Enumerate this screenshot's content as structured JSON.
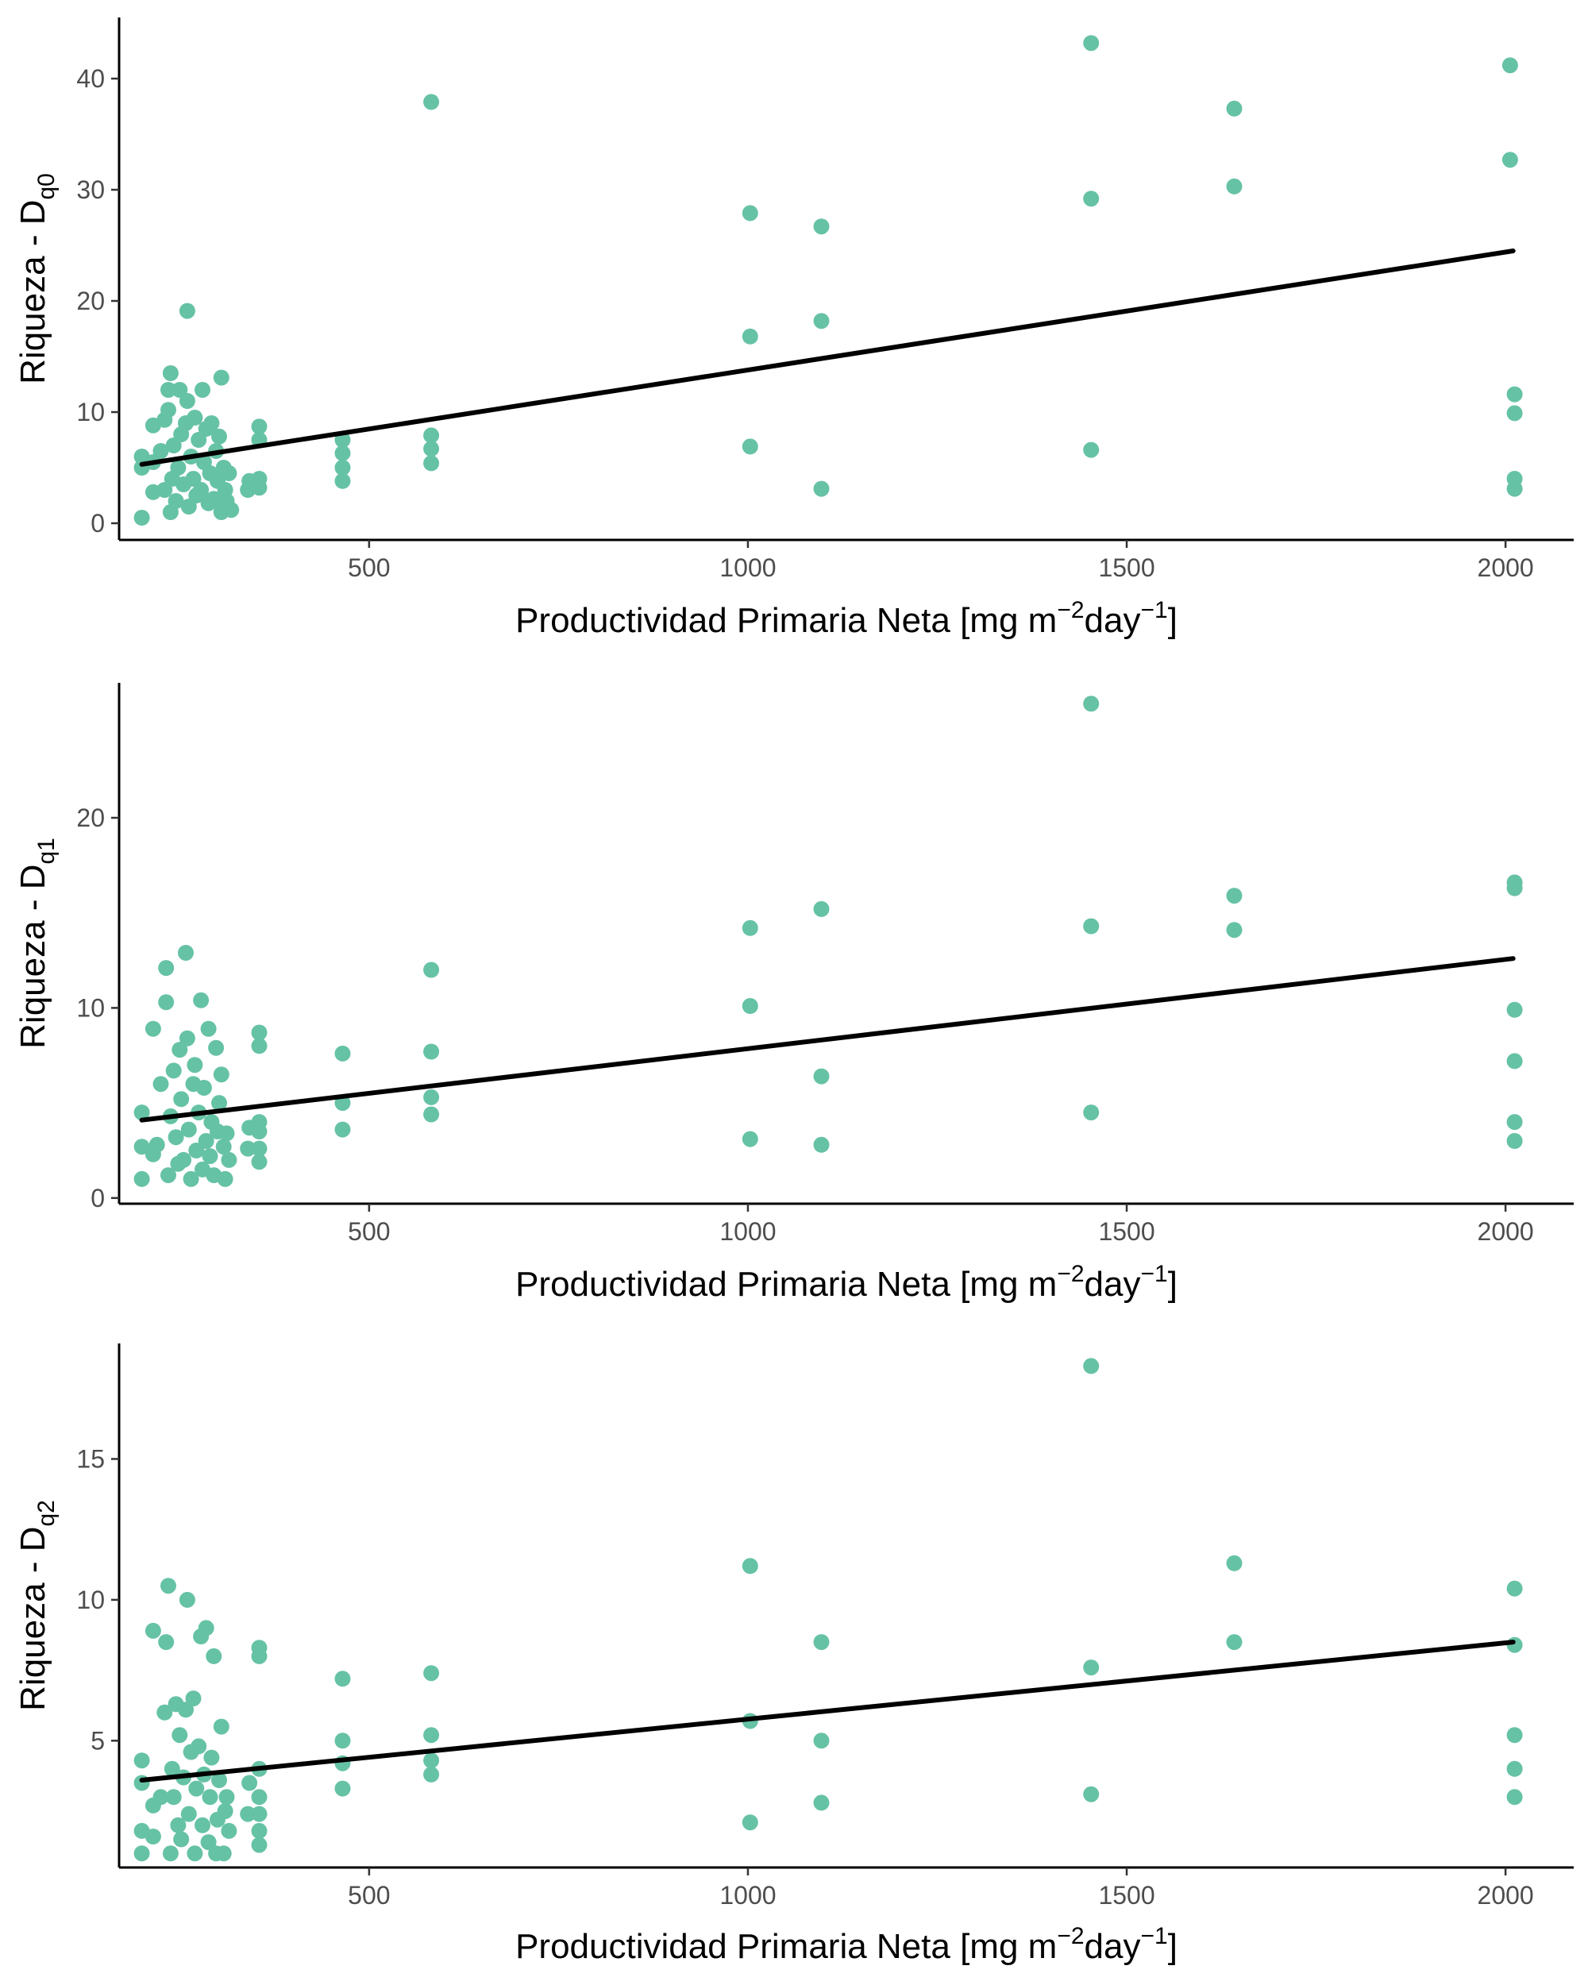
{
  "point_color": "#66c2a5",
  "line_color": "#000000",
  "chart_data": [
    {
      "type": "scatter",
      "title": "",
      "xlabel": {
        "base": "Productividad Primaria Neta [mg m",
        "sup1": "−2",
        "mid": "day",
        "sup2": "−1",
        "end": "]"
      },
      "ylabel": {
        "base": "Riqueza - D",
        "sub": "q0"
      },
      "xlim": [
        170,
        2090
      ],
      "ylim": [
        -1.5,
        45.5
      ],
      "xticks": [
        500,
        1000,
        1500,
        2000
      ],
      "yticks": [
        0,
        10,
        20,
        30,
        40
      ],
      "grid": false,
      "fit_line": {
        "x": [
          200,
          2010
        ],
        "y": [
          5.3,
          24.5
        ]
      },
      "points": [
        {
          "x": 200,
          "y": 0.5
        },
        {
          "x": 200,
          "y": 5.0
        },
        {
          "x": 200,
          "y": 6.0
        },
        {
          "x": 215,
          "y": 2.8
        },
        {
          "x": 215,
          "y": 5.5
        },
        {
          "x": 215,
          "y": 8.8
        },
        {
          "x": 225,
          "y": 6.5
        },
        {
          "x": 230,
          "y": 3.0
        },
        {
          "x": 230,
          "y": 9.3
        },
        {
          "x": 235,
          "y": 10.2
        },
        {
          "x": 235,
          "y": 12.0
        },
        {
          "x": 238,
          "y": 13.5
        },
        {
          "x": 238,
          "y": 1.0
        },
        {
          "x": 240,
          "y": 4.0
        },
        {
          "x": 242,
          "y": 7.0
        },
        {
          "x": 245,
          "y": 2.0
        },
        {
          "x": 248,
          "y": 5.0
        },
        {
          "x": 250,
          "y": 12.0
        },
        {
          "x": 252,
          "y": 8.0
        },
        {
          "x": 255,
          "y": 3.5
        },
        {
          "x": 258,
          "y": 9.0
        },
        {
          "x": 260,
          "y": 11.0
        },
        {
          "x": 260,
          "y": 19.1
        },
        {
          "x": 262,
          "y": 1.5
        },
        {
          "x": 265,
          "y": 6.0
        },
        {
          "x": 268,
          "y": 4.0
        },
        {
          "x": 270,
          "y": 9.5
        },
        {
          "x": 272,
          "y": 2.5
        },
        {
          "x": 275,
          "y": 7.5
        },
        {
          "x": 278,
          "y": 3.0
        },
        {
          "x": 280,
          "y": 12.0
        },
        {
          "x": 282,
          "y": 5.5
        },
        {
          "x": 285,
          "y": 8.5
        },
        {
          "x": 288,
          "y": 1.8
        },
        {
          "x": 290,
          "y": 4.5
        },
        {
          "x": 292,
          "y": 9.0
        },
        {
          "x": 295,
          "y": 2.2
        },
        {
          "x": 298,
          "y": 6.5
        },
        {
          "x": 300,
          "y": 3.8
        },
        {
          "x": 302,
          "y": 7.8
        },
        {
          "x": 305,
          "y": 1.0
        },
        {
          "x": 305,
          "y": 13.1
        },
        {
          "x": 308,
          "y": 5.0
        },
        {
          "x": 310,
          "y": 3.0
        },
        {
          "x": 312,
          "y": 2.0
        },
        {
          "x": 315,
          "y": 4.5
        },
        {
          "x": 318,
          "y": 1.2
        },
        {
          "x": 340,
          "y": 3.0
        },
        {
          "x": 342,
          "y": 3.8
        },
        {
          "x": 355,
          "y": 3.2
        },
        {
          "x": 355,
          "y": 4.0
        },
        {
          "x": 355,
          "y": 7.5
        },
        {
          "x": 355,
          "y": 8.7
        },
        {
          "x": 465,
          "y": 3.8
        },
        {
          "x": 465,
          "y": 5.0
        },
        {
          "x": 465,
          "y": 6.3
        },
        {
          "x": 465,
          "y": 7.5
        },
        {
          "x": 582,
          "y": 5.4
        },
        {
          "x": 582,
          "y": 6.7
        },
        {
          "x": 582,
          "y": 7.9
        },
        {
          "x": 582,
          "y": 37.9
        },
        {
          "x": 1003,
          "y": 6.9
        },
        {
          "x": 1003,
          "y": 16.8
        },
        {
          "x": 1003,
          "y": 27.9
        },
        {
          "x": 1097,
          "y": 3.1
        },
        {
          "x": 1097,
          "y": 18.2
        },
        {
          "x": 1097,
          "y": 26.7
        },
        {
          "x": 1453,
          "y": 6.6
        },
        {
          "x": 1453,
          "y": 29.2
        },
        {
          "x": 1453,
          "y": 43.2
        },
        {
          "x": 1642,
          "y": 30.3
        },
        {
          "x": 1642,
          "y": 37.3
        },
        {
          "x": 2006,
          "y": 32.7
        },
        {
          "x": 2006,
          "y": 41.2
        },
        {
          "x": 2012,
          "y": 3.1
        },
        {
          "x": 2012,
          "y": 4.0
        },
        {
          "x": 2012,
          "y": 9.9
        },
        {
          "x": 2012,
          "y": 11.6
        }
      ]
    },
    {
      "type": "scatter",
      "title": "",
      "xlabel": {
        "base": "Productividad Primaria Neta [mg m",
        "sup1": "−2",
        "mid": "day",
        "sup2": "−1",
        "end": "]"
      },
      "ylabel": {
        "base": "Riqueza - D",
        "sub": "q1"
      },
      "xlim": [
        170,
        2090
      ],
      "ylim": [
        -0.3,
        27.1
      ],
      "xticks": [
        500,
        1000,
        1500,
        2000
      ],
      "yticks": [
        0,
        10,
        20
      ],
      "grid": false,
      "fit_line": {
        "x": [
          200,
          2010
        ],
        "y": [
          4.1,
          12.6
        ]
      },
      "points": [
        {
          "x": 200,
          "y": 1.0
        },
        {
          "x": 200,
          "y": 2.7
        },
        {
          "x": 200,
          "y": 4.5
        },
        {
          "x": 215,
          "y": 2.3
        },
        {
          "x": 215,
          "y": 8.9
        },
        {
          "x": 220,
          "y": 2.8
        },
        {
          "x": 225,
          "y": 6.0
        },
        {
          "x": 232,
          "y": 10.3
        },
        {
          "x": 232,
          "y": 12.1
        },
        {
          "x": 235,
          "y": 1.2
        },
        {
          "x": 238,
          "y": 4.3
        },
        {
          "x": 242,
          "y": 6.7
        },
        {
          "x": 245,
          "y": 3.2
        },
        {
          "x": 248,
          "y": 1.8
        },
        {
          "x": 250,
          "y": 7.8
        },
        {
          "x": 252,
          "y": 5.2
        },
        {
          "x": 255,
          "y": 2.0
        },
        {
          "x": 258,
          "y": 12.9
        },
        {
          "x": 260,
          "y": 8.4
        },
        {
          "x": 262,
          "y": 3.6
        },
        {
          "x": 265,
          "y": 1.0
        },
        {
          "x": 268,
          "y": 6.0
        },
        {
          "x": 270,
          "y": 7.0
        },
        {
          "x": 272,
          "y": 2.5
        },
        {
          "x": 275,
          "y": 4.5
        },
        {
          "x": 278,
          "y": 10.4
        },
        {
          "x": 280,
          "y": 1.5
        },
        {
          "x": 282,
          "y": 5.8
        },
        {
          "x": 285,
          "y": 3.0
        },
        {
          "x": 288,
          "y": 8.9
        },
        {
          "x": 290,
          "y": 2.2
        },
        {
          "x": 292,
          "y": 4.0
        },
        {
          "x": 295,
          "y": 1.2
        },
        {
          "x": 298,
          "y": 7.9
        },
        {
          "x": 300,
          "y": 3.5
        },
        {
          "x": 302,
          "y": 5.0
        },
        {
          "x": 305,
          "y": 6.5
        },
        {
          "x": 308,
          "y": 2.7
        },
        {
          "x": 310,
          "y": 1.0
        },
        {
          "x": 312,
          "y": 3.4
        },
        {
          "x": 315,
          "y": 2.0
        },
        {
          "x": 340,
          "y": 2.6
        },
        {
          "x": 342,
          "y": 3.7
        },
        {
          "x": 355,
          "y": 1.9
        },
        {
          "x": 355,
          "y": 2.6
        },
        {
          "x": 355,
          "y": 3.5
        },
        {
          "x": 355,
          "y": 4.0
        },
        {
          "x": 355,
          "y": 8.0
        },
        {
          "x": 355,
          "y": 8.7
        },
        {
          "x": 465,
          "y": 3.6
        },
        {
          "x": 465,
          "y": 5.0
        },
        {
          "x": 465,
          "y": 7.6
        },
        {
          "x": 582,
          "y": 4.4
        },
        {
          "x": 582,
          "y": 5.3
        },
        {
          "x": 582,
          "y": 7.7
        },
        {
          "x": 582,
          "y": 12.0
        },
        {
          "x": 1003,
          "y": 3.1
        },
        {
          "x": 1003,
          "y": 10.1
        },
        {
          "x": 1003,
          "y": 14.2
        },
        {
          "x": 1097,
          "y": 2.8
        },
        {
          "x": 1097,
          "y": 6.4
        },
        {
          "x": 1097,
          "y": 15.2
        },
        {
          "x": 1453,
          "y": 4.5
        },
        {
          "x": 1453,
          "y": 14.3
        },
        {
          "x": 1453,
          "y": 26.0
        },
        {
          "x": 1642,
          "y": 14.1
        },
        {
          "x": 1642,
          "y": 15.9
        },
        {
          "x": 2012,
          "y": 3.0
        },
        {
          "x": 2012,
          "y": 4.0
        },
        {
          "x": 2012,
          "y": 7.2
        },
        {
          "x": 2012,
          "y": 9.9
        },
        {
          "x": 2012,
          "y": 16.3
        },
        {
          "x": 2012,
          "y": 16.6
        }
      ]
    },
    {
      "type": "scatter",
      "title": "",
      "xlabel": {
        "base": "Productividad Primaria Neta [mg m",
        "sup1": "−2",
        "mid": "day",
        "sup2": "−1",
        "end": "]"
      },
      "ylabel": {
        "base": "Riqueza - D",
        "sub": "q2"
      },
      "xlim": [
        170,
        2090
      ],
      "ylim": [
        0.5,
        19.1
      ],
      "xticks": [
        500,
        1000,
        1500,
        2000
      ],
      "yticks": [
        5,
        10,
        15
      ],
      "grid": false,
      "fit_line": {
        "x": [
          200,
          2010
        ],
        "y": [
          3.6,
          8.5
        ]
      },
      "points": [
        {
          "x": 200,
          "y": 1.0
        },
        {
          "x": 200,
          "y": 1.8
        },
        {
          "x": 200,
          "y": 3.5
        },
        {
          "x": 200,
          "y": 4.3
        },
        {
          "x": 215,
          "y": 1.6
        },
        {
          "x": 215,
          "y": 2.7
        },
        {
          "x": 215,
          "y": 8.9
        },
        {
          "x": 225,
          "y": 3.0
        },
        {
          "x": 230,
          "y": 6.0
        },
        {
          "x": 232,
          "y": 8.5
        },
        {
          "x": 235,
          "y": 10.5
        },
        {
          "x": 238,
          "y": 1.0
        },
        {
          "x": 240,
          "y": 4.0
        },
        {
          "x": 242,
          "y": 3.0
        },
        {
          "x": 245,
          "y": 6.3
        },
        {
          "x": 248,
          "y": 2.0
        },
        {
          "x": 250,
          "y": 5.2
        },
        {
          "x": 252,
          "y": 1.5
        },
        {
          "x": 255,
          "y": 3.7
        },
        {
          "x": 258,
          "y": 6.1
        },
        {
          "x": 260,
          "y": 10.0
        },
        {
          "x": 262,
          "y": 2.4
        },
        {
          "x": 265,
          "y": 4.6
        },
        {
          "x": 268,
          "y": 6.5
        },
        {
          "x": 270,
          "y": 1.0
        },
        {
          "x": 272,
          "y": 3.3
        },
        {
          "x": 275,
          "y": 4.8
        },
        {
          "x": 278,
          "y": 8.7
        },
        {
          "x": 280,
          "y": 2.0
        },
        {
          "x": 282,
          "y": 3.8
        },
        {
          "x": 285,
          "y": 9.0
        },
        {
          "x": 288,
          "y": 1.4
        },
        {
          "x": 290,
          "y": 3.0
        },
        {
          "x": 292,
          "y": 4.4
        },
        {
          "x": 295,
          "y": 8.0
        },
        {
          "x": 298,
          "y": 1.0
        },
        {
          "x": 300,
          "y": 2.2
        },
        {
          "x": 302,
          "y": 3.6
        },
        {
          "x": 305,
          "y": 5.5
        },
        {
          "x": 308,
          "y": 1.0
        },
        {
          "x": 310,
          "y": 2.5
        },
        {
          "x": 312,
          "y": 3.0
        },
        {
          "x": 315,
          "y": 1.8
        },
        {
          "x": 340,
          "y": 2.4
        },
        {
          "x": 342,
          "y": 3.5
        },
        {
          "x": 355,
          "y": 1.3
        },
        {
          "x": 355,
          "y": 1.8
        },
        {
          "x": 355,
          "y": 2.4
        },
        {
          "x": 355,
          "y": 3.0
        },
        {
          "x": 355,
          "y": 4.0
        },
        {
          "x": 355,
          "y": 8.0
        },
        {
          "x": 355,
          "y": 8.3
        },
        {
          "x": 465,
          "y": 3.3
        },
        {
          "x": 465,
          "y": 4.2
        },
        {
          "x": 465,
          "y": 5.0
        },
        {
          "x": 465,
          "y": 7.2
        },
        {
          "x": 582,
          "y": 3.8
        },
        {
          "x": 582,
          "y": 4.3
        },
        {
          "x": 582,
          "y": 5.2
        },
        {
          "x": 582,
          "y": 7.4
        },
        {
          "x": 1003,
          "y": 2.1
        },
        {
          "x": 1003,
          "y": 5.7
        },
        {
          "x": 1003,
          "y": 11.2
        },
        {
          "x": 1097,
          "y": 2.8
        },
        {
          "x": 1097,
          "y": 5.0
        },
        {
          "x": 1097,
          "y": 8.5
        },
        {
          "x": 1453,
          "y": 3.1
        },
        {
          "x": 1453,
          "y": 7.6
        },
        {
          "x": 1453,
          "y": 18.3
        },
        {
          "x": 1642,
          "y": 8.5
        },
        {
          "x": 1642,
          "y": 11.3
        },
        {
          "x": 2012,
          "y": 3.0
        },
        {
          "x": 2012,
          "y": 4.0
        },
        {
          "x": 2012,
          "y": 5.2
        },
        {
          "x": 2012,
          "y": 8.4
        },
        {
          "x": 2012,
          "y": 10.4
        }
      ]
    }
  ]
}
